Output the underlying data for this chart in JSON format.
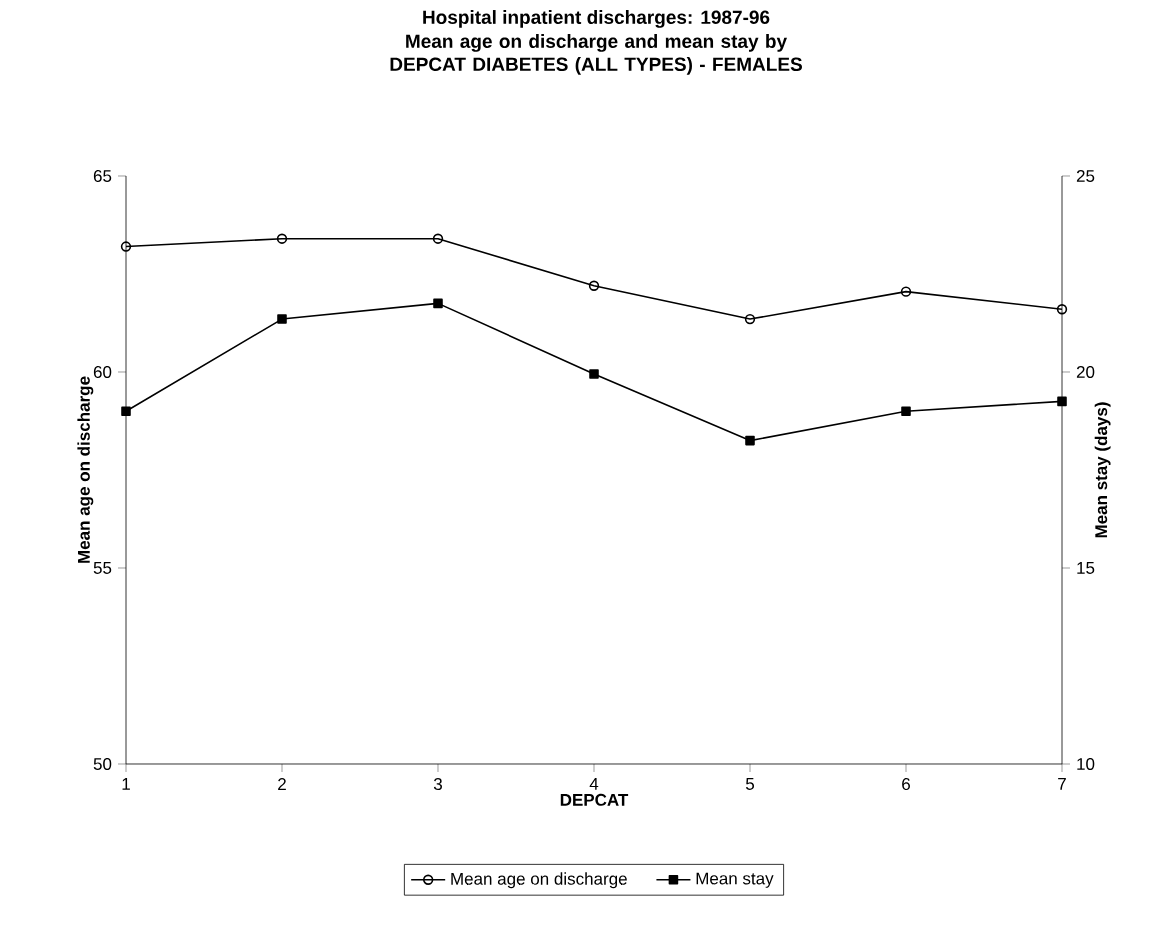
{
  "chart_data": {
    "type": "line",
    "title": "Hospital inpatient discharges: 1987-96",
    "subtitle": "Mean age on discharge and mean stay by DEPCAT DIABETES (ALL TYPES) - FEMALES",
    "xlabel": "DEPCAT",
    "ylabel": "Mean age on discharge",
    "y2label": "Mean stay (days)",
    "x": [
      1,
      2,
      3,
      4,
      5,
      6,
      7
    ],
    "series": [
      {
        "name": "Mean age on discharge",
        "color": "#000000",
        "marker": "circle",
        "values": [
          63.2,
          63.4,
          63.4,
          62.2,
          61.35,
          62.05,
          61.6
        ]
      },
      {
        "name": "Mean stay",
        "color": "#000000",
        "marker": "square",
        "axis": "y2",
        "values": [
          19.0,
          21.35,
          21.75,
          19.95,
          18.25,
          19.0,
          19.25
        ]
      }
    ],
    "xlim": [
      1,
      7
    ],
    "xticks": [
      1,
      2,
      3,
      4,
      5,
      6,
      7
    ],
    "ylim": [
      50,
      65
    ],
    "yticks": [
      50,
      55,
      60,
      65
    ],
    "y2lim": [
      10,
      25
    ],
    "y2ticks": [
      10,
      15,
      20,
      25
    ],
    "grid": false,
    "legend": "bottom"
  }
}
